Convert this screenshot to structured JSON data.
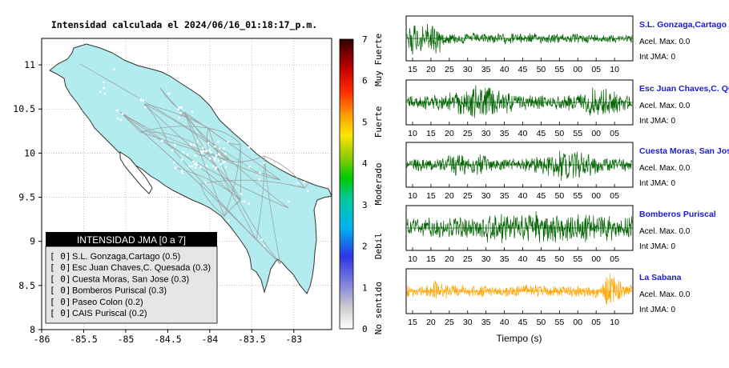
{
  "title": "Intensidad calculada el 2024/06/16_01:18:17_p.m.",
  "chart_data": [
    {
      "type": "map",
      "xlim": [
        -86,
        -82.55
      ],
      "ylim": [
        8,
        11.3
      ],
      "xticks": [
        -86,
        -85.5,
        -85,
        -84.5,
        -84,
        -83.5,
        -83
      ],
      "yticks": [
        8,
        8.5,
        9,
        9.5,
        10,
        10.5,
        11
      ],
      "xtick_labels": [
        "-86",
        "-85.5",
        "-85",
        "-84.5",
        "-84",
        "-83.5",
        "-83"
      ],
      "ytick_labels": [
        "8",
        "8.5",
        "9",
        "9.5",
        "10",
        "10.5",
        "11"
      ],
      "land_color": "#b2ecee",
      "legend": {
        "title": "INTENSIDAD JMA [0 a 7]",
        "items": [
          {
            "value": "[ 0]",
            "label": "S.L. Gonzaga,Cartago (0.5)"
          },
          {
            "value": "[ 0]",
            "label": "Esc Juan Chaves,C. Quesada (0.3)"
          },
          {
            "value": "[ 0]",
            "label": "Cuesta Moras, San Jose (0.3)"
          },
          {
            "value": "[ 0]",
            "label": "Bomberos Puriscal (0.3)"
          },
          {
            "value": "[ 0]",
            "label": "Paseo Colon (0.2)"
          },
          {
            "value": "[ 0]",
            "label": "CAIS Puriscal (0.2)"
          }
        ]
      }
    },
    {
      "type": "heatmap",
      "range": [
        0,
        7
      ],
      "ticks": [
        "0",
        "1",
        "2",
        "3",
        "4",
        "5",
        "6",
        "7"
      ],
      "class_labels": [
        "No sentido",
        "Debil",
        "Moderado",
        "Fuerte",
        "Muy Fuerte"
      ]
    },
    {
      "type": "line",
      "xlabel": "Tiempo (s)",
      "series": [
        {
          "name": "S.L. Gonzaga,Cartago",
          "accel_text": "Acel. Max. 0.0",
          "jma_text": "Int JMA: 0",
          "color": "#006400",
          "ticks": [
            "15",
            "20",
            "25",
            "30",
            "35",
            "40",
            "45",
            "50",
            "55",
            "00",
            "05",
            "10"
          ]
        },
        {
          "name": "Esc Juan Chaves,C. Qu",
          "accel_text": "Acel. Max. 0.0",
          "jma_text": "Int JMA: 0",
          "color": "#006400",
          "ticks": [
            "10",
            "15",
            "20",
            "25",
            "30",
            "35",
            "40",
            "45",
            "50",
            "55",
            "00",
            "05"
          ]
        },
        {
          "name": "Cuesta Moras, San Jose",
          "accel_text": "Acel. Max. 0.0",
          "jma_text": "Int JMA: 0",
          "color": "#006400",
          "ticks": [
            "10",
            "15",
            "20",
            "25",
            "30",
            "35",
            "40",
            "45",
            "50",
            "55",
            "00",
            "05"
          ]
        },
        {
          "name": "Bomberos Puriscal",
          "accel_text": "Acel. Max. 0.0",
          "jma_text": "Int JMA: 0",
          "color": "#006400",
          "ticks": [
            "10",
            "15",
            "20",
            "25",
            "30",
            "35",
            "40",
            "45",
            "50",
            "55",
            "00",
            "05"
          ]
        },
        {
          "name": "La Sabana",
          "accel_text": "Acel. Max. 0.0",
          "jma_text": "Int JMA: 0",
          "color": "#ffa500",
          "ticks": [
            "15",
            "20",
            "25",
            "30",
            "35",
            "40",
            "45",
            "50",
            "55",
            "00",
            "05",
            "10"
          ]
        }
      ]
    }
  ]
}
